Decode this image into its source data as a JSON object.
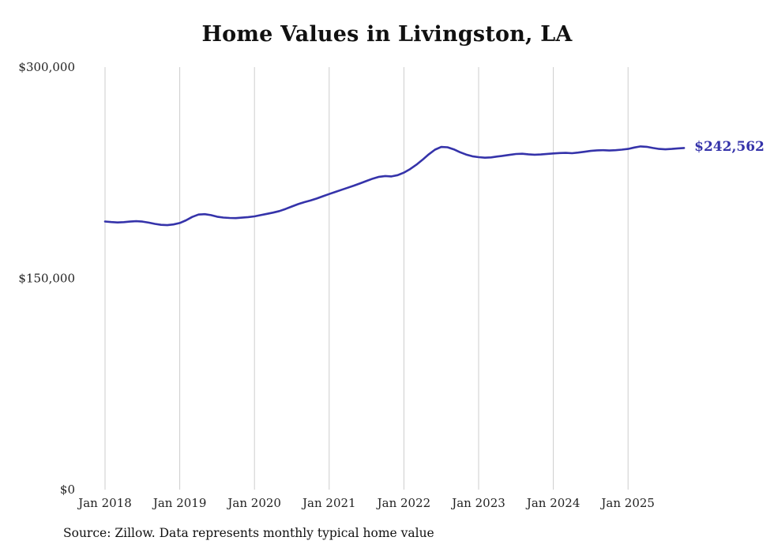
{
  "title": "Home Values in Livingston, LA",
  "source_note": "Source: Zillow. Data represents monthly typical home value",
  "end_label": "$242,562",
  "colors": {
    "line": "#3533aa",
    "grid": "#cccccc",
    "text": "#222222",
    "title": "#111111"
  },
  "chart_data": {
    "type": "line",
    "title": "Home Values in Livingston, LA",
    "ylabel": "",
    "xlabel": "",
    "ylim": [
      0,
      300000
    ],
    "grid": "vertical-only",
    "legend": "none",
    "end_value": 242562,
    "yticks": [
      {
        "value": 0,
        "label": "$0"
      },
      {
        "value": 150000,
        "label": "$150,000"
      },
      {
        "value": 300000,
        "label": "$300,000"
      }
    ],
    "xticks": [
      "Jan 2018",
      "Jan 2019",
      "Jan 2020",
      "Jan 2021",
      "Jan 2022",
      "Jan 2023",
      "Jan 2024",
      "Jan 2025"
    ],
    "series": [
      {
        "name": "Monthly typical home value",
        "color": "#3533aa",
        "x": [
          "2018-01",
          "2018-02",
          "2018-03",
          "2018-04",
          "2018-05",
          "2018-06",
          "2018-07",
          "2018-08",
          "2018-09",
          "2018-10",
          "2018-11",
          "2018-12",
          "2019-01",
          "2019-02",
          "2019-03",
          "2019-04",
          "2019-05",
          "2019-06",
          "2019-07",
          "2019-08",
          "2019-09",
          "2019-10",
          "2019-11",
          "2019-12",
          "2020-01",
          "2020-02",
          "2020-03",
          "2020-04",
          "2020-05",
          "2020-06",
          "2020-07",
          "2020-08",
          "2020-09",
          "2020-10",
          "2020-11",
          "2020-12",
          "2021-01",
          "2021-02",
          "2021-03",
          "2021-04",
          "2021-05",
          "2021-06",
          "2021-07",
          "2021-08",
          "2021-09",
          "2021-10",
          "2021-11",
          "2021-12",
          "2022-01",
          "2022-02",
          "2022-03",
          "2022-04",
          "2022-05",
          "2022-06",
          "2022-07",
          "2022-08",
          "2022-09",
          "2022-10",
          "2022-11",
          "2022-12",
          "2023-01",
          "2023-02",
          "2023-03",
          "2023-04",
          "2023-05",
          "2023-06",
          "2023-07",
          "2023-08",
          "2023-09",
          "2023-10",
          "2023-11",
          "2023-12",
          "2024-01",
          "2024-02",
          "2024-03",
          "2024-04",
          "2024-05",
          "2024-06",
          "2024-07",
          "2024-08",
          "2024-09",
          "2024-10",
          "2024-11",
          "2024-12",
          "2025-01",
          "2025-02",
          "2025-03",
          "2025-04",
          "2025-05",
          "2025-06",
          "2025-07",
          "2025-08",
          "2025-09",
          "2025-10"
        ],
        "values": [
          190400,
          190000,
          189700,
          189900,
          190300,
          190600,
          190300,
          189600,
          188700,
          188000,
          187800,
          188300,
          189300,
          191200,
          193600,
          195300,
          195600,
          194900,
          193800,
          193200,
          192900,
          192800,
          193100,
          193500,
          194000,
          194900,
          195800,
          196700,
          197800,
          199300,
          201000,
          202700,
          204100,
          205300,
          206700,
          208300,
          209900,
          211400,
          212900,
          214400,
          215900,
          217500,
          219200,
          220800,
          222100,
          222700,
          222400,
          223300,
          225100,
          227600,
          230700,
          234200,
          238100,
          241400,
          243300,
          243100,
          241600,
          239600,
          237900,
          236700,
          236100,
          235700,
          235900,
          236500,
          237100,
          237700,
          238300,
          238500,
          238100,
          237800,
          238000,
          238400,
          238700,
          239000,
          239100,
          238900,
          239300,
          239900,
          240500,
          240900,
          241000,
          240800,
          241000,
          241400,
          241900,
          242900,
          243700,
          243400,
          242600,
          241900,
          241600,
          241900,
          242300,
          242562
        ]
      }
    ]
  }
}
